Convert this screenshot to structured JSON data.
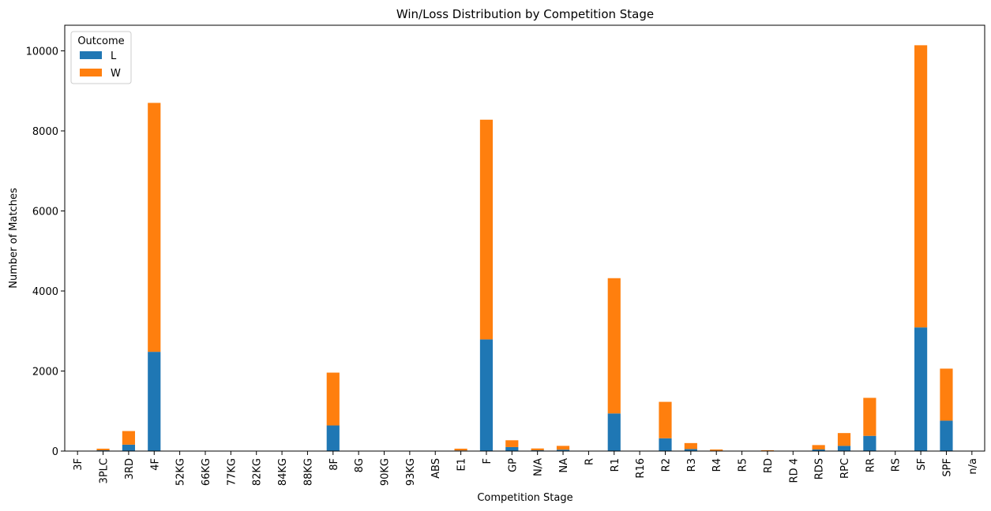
{
  "chart_data": {
    "type": "bar",
    "stacked": true,
    "title": "Win/Loss Distribution by Competition Stage",
    "xlabel": "Competition Stage",
    "ylabel": "Number of Matches",
    "ylim": [
      0,
      10640
    ],
    "yticks": [
      0,
      2000,
      4000,
      6000,
      8000,
      10000
    ],
    "yticklabels": [
      "0",
      "2000",
      "4000",
      "6000",
      "8000",
      "10000"
    ],
    "categories": [
      "3F",
      "3PLC",
      "3RD",
      "4F",
      "52KG",
      "66KG",
      "77KG",
      "82KG",
      "84KG",
      "88KG",
      "8F",
      "8G",
      "90KG",
      "93KG",
      "ABS",
      "E1",
      "F",
      "GP",
      "N/A",
      "NA",
      "R",
      "R1",
      "R16",
      "R2",
      "R3",
      "R4",
      "R5",
      "RD",
      "RD 4",
      "RDS",
      "RPC",
      "RR",
      "RS",
      "SF",
      "SPF",
      "n/a"
    ],
    "legend": {
      "title": "Outcome",
      "position": "top-left"
    },
    "grid": false,
    "series": [
      {
        "name": "L",
        "color": "#1f77b4",
        "values": [
          2,
          20,
          160,
          2480,
          1,
          1,
          1,
          1,
          1,
          1,
          640,
          1,
          1,
          1,
          1,
          15,
          2790,
          100,
          20,
          35,
          2,
          940,
          2,
          320,
          50,
          12,
          1,
          5,
          2,
          40,
          130,
          380,
          1,
          3090,
          760,
          2
        ]
      },
      {
        "name": "W",
        "color": "#ff7f0e",
        "values": [
          2,
          40,
          340,
          6220,
          1,
          1,
          1,
          1,
          1,
          1,
          1320,
          1,
          1,
          1,
          1,
          45,
          5490,
          170,
          45,
          95,
          3,
          3380,
          3,
          910,
          150,
          28,
          2,
          15,
          4,
          110,
          320,
          950,
          2,
          7050,
          1300,
          3
        ]
      }
    ]
  }
}
